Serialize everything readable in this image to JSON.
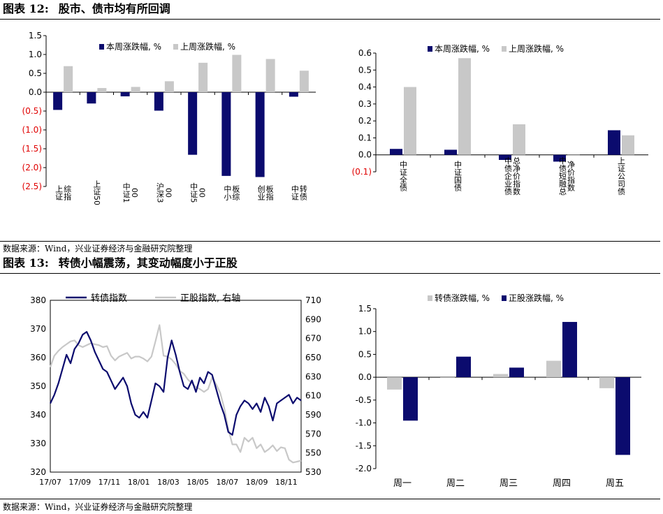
{
  "figure12": {
    "label": "图表 12:",
    "title": "股市、债市均有所回调",
    "source": "数据来源：Wind，兴业证券经济与金融研究院整理"
  },
  "figure13": {
    "label": "图表 13:",
    "title": "转债小幅震荡，其变动幅度小于正股",
    "source": "数据来源：Wind，兴业证券经济与金融研究院整理"
  },
  "colors": {
    "navy": "#0b0b6e",
    "gray": "#c8c8c8",
    "negative": "#e00000"
  },
  "chart_data": [
    {
      "id": "stock_index",
      "type": "bar",
      "categories": [
        "上证综指",
        "上证50",
        "中证100",
        "沪深300",
        "中证500",
        "中小板综",
        "创业板指",
        "中证转债"
      ],
      "series": [
        {
          "name": "本周涨跌幅, %",
          "values": [
            -0.47,
            -0.3,
            -0.11,
            -0.49,
            -1.66,
            -2.22,
            -2.25,
            -0.12
          ]
        },
        {
          "name": "上周涨跌幅, %",
          "values": [
            0.69,
            0.11,
            0.14,
            0.29,
            0.78,
            0.99,
            0.88,
            0.57
          ]
        }
      ],
      "ylim": [
        -2.5,
        1.5
      ],
      "yticks": [
        "1.5",
        "1.0",
        "0.5",
        "0.0",
        "(0.5)",
        "(1.0)",
        "(1.5)",
        "(2.0)",
        "(2.5)"
      ],
      "legend": "top"
    },
    {
      "id": "bond_index",
      "type": "bar",
      "categories": [
        "中证全债",
        "中证国债",
        "中债企业债总净价指数",
        "中债短融总净价指数",
        "上证公司债"
      ],
      "series": [
        {
          "name": "本周涨跌幅, %",
          "values": [
            0.035,
            0.03,
            -0.03,
            -0.04,
            0.145
          ]
        },
        {
          "name": "上周涨跌幅, %",
          "values": [
            0.4,
            0.57,
            0.18,
            0.0,
            0.115
          ]
        }
      ],
      "ylim": [
        -0.1,
        0.6
      ],
      "yticks": [
        "0.6",
        "0.5",
        "0.4",
        "0.3",
        "0.2",
        "0.1",
        "0.0",
        "(0.1)"
      ],
      "legend": "top"
    },
    {
      "id": "cb_vs_stock",
      "type": "line",
      "x_ticks": [
        "17/07",
        "17/09",
        "17/11",
        "18/01",
        "18/03",
        "18/05",
        "18/07",
        "18/09",
        "18/11"
      ],
      "series": [
        {
          "name": "转债指数",
          "axis": "left",
          "values": [
            344,
            347,
            351,
            356,
            361,
            358,
            363,
            365,
            368,
            369,
            366,
            362,
            359,
            356,
            355,
            352,
            349,
            351,
            353,
            350,
            344,
            340,
            339,
            341,
            339,
            345,
            351,
            350,
            348,
            360,
            366,
            361,
            355,
            350,
            349,
            352,
            348,
            353,
            351,
            355,
            354,
            349,
            344,
            340,
            334,
            333,
            340,
            343,
            345,
            344,
            342,
            344,
            341,
            346,
            343,
            338,
            344,
            345,
            346,
            347,
            344,
            346,
            345
          ]
        },
        {
          "name": "正股指数, 右轴",
          "axis": "right",
          "values": [
            640,
            652,
            657,
            661,
            664,
            667,
            668,
            663,
            661,
            663,
            665,
            664,
            663,
            661,
            662,
            652,
            647,
            651,
            653,
            655,
            649,
            651,
            651,
            649,
            646,
            651,
            667,
            684,
            652,
            651,
            648,
            643,
            636,
            633,
            627,
            623,
            619,
            617,
            614,
            617,
            629,
            622,
            613,
            597,
            575,
            559,
            559,
            551,
            566,
            562,
            566,
            555,
            559,
            551,
            554,
            558,
            552,
            556,
            555,
            543,
            540,
            541,
            542
          ]
        }
      ],
      "ylim_left": [
        320,
        380
      ],
      "ylim_right": [
        530,
        710
      ],
      "yticks_left": [
        "380",
        "370",
        "360",
        "350",
        "340",
        "330",
        "320"
      ],
      "yticks_right": [
        "710",
        "690",
        "670",
        "650",
        "630",
        "610",
        "590",
        "570",
        "550",
        "530"
      ],
      "legend": "top"
    },
    {
      "id": "weekday_change",
      "type": "bar",
      "categories": [
        "周一",
        "周二",
        "周三",
        "周四",
        "周五"
      ],
      "series": [
        {
          "name": "转债涨跌幅, %",
          "values": [
            -0.27,
            0.0,
            0.07,
            0.36,
            -0.24
          ]
        },
        {
          "name": "正股涨跌幅, %",
          "values": [
            -0.95,
            0.45,
            0.21,
            1.21,
            -1.7
          ]
        }
      ],
      "ylim": [
        -2.0,
        1.5
      ],
      "yticks": [
        "1.5",
        "1.0",
        "0.5",
        "0.0",
        "-0.5",
        "-1.0",
        "-1.5",
        "-2.0"
      ],
      "legend": "top"
    }
  ]
}
